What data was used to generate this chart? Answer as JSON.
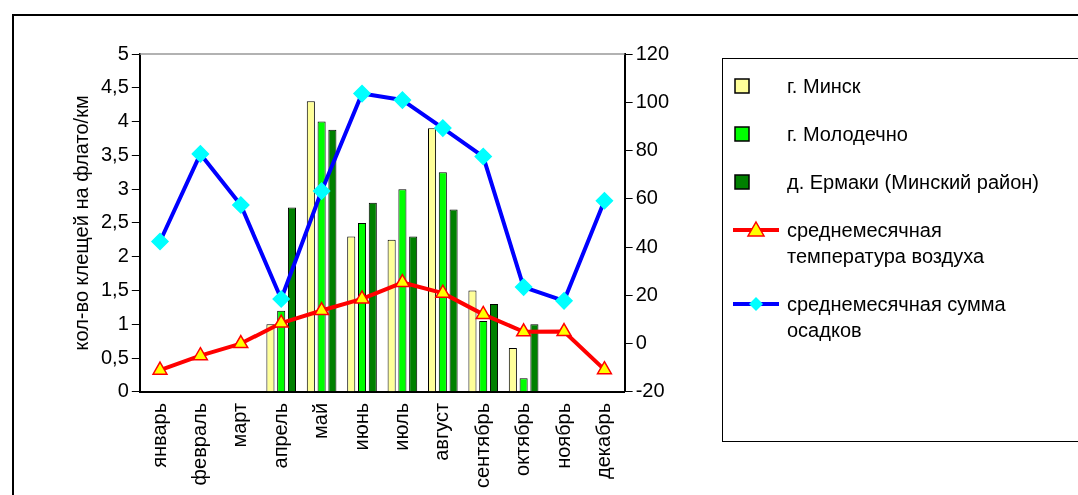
{
  "chart_data": {
    "type": "bar",
    "ylabel": "кол-во клещей на флато/км",
    "categories": [
      "январь",
      "февраль",
      "март",
      "апрель",
      "май",
      "июнь",
      "июль",
      "август",
      "сентябрь",
      "октябрь",
      "ноябрь",
      "декабрь"
    ],
    "series": [
      {
        "name": "г. Минск",
        "color": "#ffff99",
        "values": [
          null,
          null,
          null,
          1.0,
          4.3,
          2.3,
          2.25,
          3.9,
          1.5,
          0.65,
          null,
          null
        ]
      },
      {
        "name": "г. Молодечно",
        "color": "#00ff00",
        "values": [
          null,
          null,
          null,
          1.2,
          4.0,
          2.5,
          3.0,
          3.25,
          1.05,
          0.2,
          null,
          null
        ]
      },
      {
        "name": "д. Ермаки (Минский район)",
        "color": "#008000",
        "values": [
          null,
          null,
          null,
          2.73,
          3.88,
          2.8,
          2.3,
          2.7,
          1.3,
          1.0,
          null,
          null
        ]
      },
      {
        "name": "среднемесячная температура воздуха",
        "type": "line",
        "axis": "y2",
        "color": "#ff0000",
        "marker": "triangle",
        "values": [
          -11,
          -5,
          0,
          8.5,
          13.7,
          18.5,
          25.3,
          20.9,
          12.1,
          4.9,
          5,
          -10.8
        ]
      },
      {
        "name": "среднемесячная сумма осадков",
        "type": "line",
        "axis": "y2",
        "color": "#0000ff",
        "marker": "diamond",
        "values": [
          42.3,
          78.6,
          57.4,
          18.5,
          63.2,
          103.6,
          100.9,
          89.3,
          77.5,
          23.4,
          17.7,
          59.2
        ]
      }
    ],
    "ylim": [
      0,
      5
    ],
    "yticks": [
      0,
      {
        "value": 0.5,
        "label": "0,5"
      },
      1,
      {
        "value": 1.5,
        "label": "1,5"
      },
      2,
      {
        "value": 2.5,
        "label": "2,5"
      },
      3,
      {
        "value": 3.5,
        "label": "3,5"
      },
      4,
      {
        "value": 4.5,
        "label": "4,5"
      },
      5
    ],
    "y2lim": [
      -20,
      120
    ],
    "y2ticks": [
      -20,
      0,
      20,
      40,
      60,
      80,
      100,
      120
    ],
    "grid": false,
    "legend": "right"
  }
}
